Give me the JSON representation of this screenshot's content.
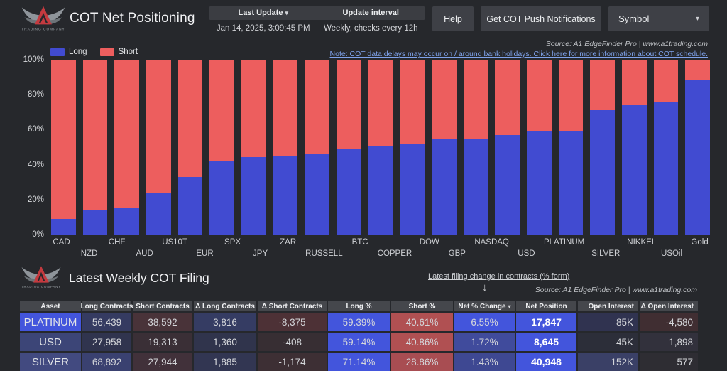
{
  "colors": {
    "background": "#26282c",
    "panel_strip": "#3b3d42",
    "button_bg": "#3e4046",
    "long_blue": "#414bd1",
    "short_red": "#ed5e5e",
    "link_blue": "#7fa3ec",
    "table_header_bg": "#45474c",
    "bright_blue_cell": "#4355dc",
    "muted_red_cell": "#b05052"
  },
  "header": {
    "logo_text": "TRADING COMPANY",
    "title": "COT Net Positioning",
    "last_update_label": "Last Update",
    "last_update_caret": "▾",
    "last_update_value": "Jan 14, 2025, 3:09:45 PM",
    "update_interval_label": "Update interval",
    "update_interval_value": "Weekly, checks every 12h",
    "help_button": "Help",
    "notifications_button": "Get COT Push Notifications",
    "symbol_dropdown": "Symbol",
    "symbol_caret": "▾"
  },
  "chart_section": {
    "source": "Source: A1 EdgeFinder Pro | www.a1trading.com",
    "note_link": "Note: COT data delays may occur on / around bank holidays. Click here for more information about COT schedule.",
    "y_ticks": [
      "100%",
      "80%",
      "60%",
      "40%",
      "20%",
      "0%"
    ],
    "legend": [
      {
        "label": "Long",
        "color": "#414bd1"
      },
      {
        "label": "Short",
        "color": "#ed5e5e"
      }
    ]
  },
  "chart_data": {
    "type": "bar",
    "stacked": true,
    "title": "COT Net Positioning",
    "xlabel": "",
    "ylabel": "",
    "ylim": [
      0,
      100
    ],
    "y_tick_format": "percent",
    "grid": false,
    "legend_position": "top-left",
    "categories": [
      "CAD",
      "NZD",
      "CHF",
      "AUD",
      "US10T",
      "EUR",
      "SPX",
      "JPY",
      "ZAR",
      "RUSSELL",
      "BTC",
      "COPPER",
      "DOW",
      "GBP",
      "NASDAQ",
      "USD",
      "PLATINUM",
      "SILVER",
      "NIKKEI",
      "USOil",
      "Gold"
    ],
    "series": [
      {
        "name": "Long",
        "color": "#414bd1",
        "values": [
          9,
          14,
          15,
          24,
          33,
          42,
          44.5,
          45,
          46.5,
          49,
          51,
          51.5,
          54.5,
          55,
          57,
          59.1,
          59.4,
          71.1,
          74,
          75.5,
          88.5
        ]
      },
      {
        "name": "Short",
        "color": "#ed5e5e",
        "values": [
          91,
          86,
          85,
          76,
          67,
          58,
          55.5,
          55,
          53.5,
          51,
          49,
          48.5,
          45.5,
          45,
          43,
          40.9,
          40.6,
          28.9,
          26,
          24.5,
          11.5
        ]
      }
    ]
  },
  "filing_section": {
    "title": "Latest Weekly COT Filing",
    "filter_link": "Latest filing change in contracts (% form)",
    "arrow": "↓",
    "source": "Source: A1 EdgeFinder Pro | www.a1trading.com"
  },
  "table": {
    "columns": [
      "Asset",
      "Long Contracts",
      "Short Contracts",
      "Δ Long Contracts",
      "Δ Short Contracts",
      "Long %",
      "Short %",
      "Net % Change",
      "Net Position",
      "Open Interest",
      "Δ Open Interest"
    ],
    "sort_column": "Net % Change",
    "sort_caret": "▾",
    "rows": [
      {
        "cells": [
          "PLATINUM",
          "56,439",
          "38,592",
          "3,816",
          "-8,375",
          "59.39%",
          "40.61%",
          "6.55%",
          "17,847",
          "85K",
          "-4,580"
        ],
        "cell_colors": [
          "#4355dc",
          "#353b61",
          "#493339",
          "#353c63",
          "#4d3136",
          "#4355dc",
          "#b05052",
          "#4355dc",
          "#4355dc",
          "#303350",
          "#402e32"
        ]
      },
      {
        "cells": [
          "USD",
          "27,958",
          "19,313",
          "1,360",
          "-408",
          "59.14%",
          "40.86%",
          "1.72%",
          "8,645",
          "45K",
          "1,898"
        ],
        "cell_colors": [
          "#3c4577",
          "#30344e",
          "#3a2f36",
          "#30344c",
          "#372e33",
          "#4355dc",
          "#b05052",
          "#404b9c",
          "#4355dc",
          "#2c2e39",
          "#32313c"
        ]
      },
      {
        "cells": [
          "SILVER",
          "68,892",
          "27,944",
          "1,885",
          "-1,174",
          "71.14%",
          "28.86%",
          "1.43%",
          "40,948",
          "152K",
          "577"
        ],
        "cell_colors": [
          "#424a80",
          "#3a4170",
          "#41313a",
          "#323652",
          "#3d2f34",
          "#4355dc",
          "#a84d52",
          "#3e4892",
          "#4355dc",
          "#3a4066",
          "#2e2d33"
        ]
      }
    ]
  }
}
